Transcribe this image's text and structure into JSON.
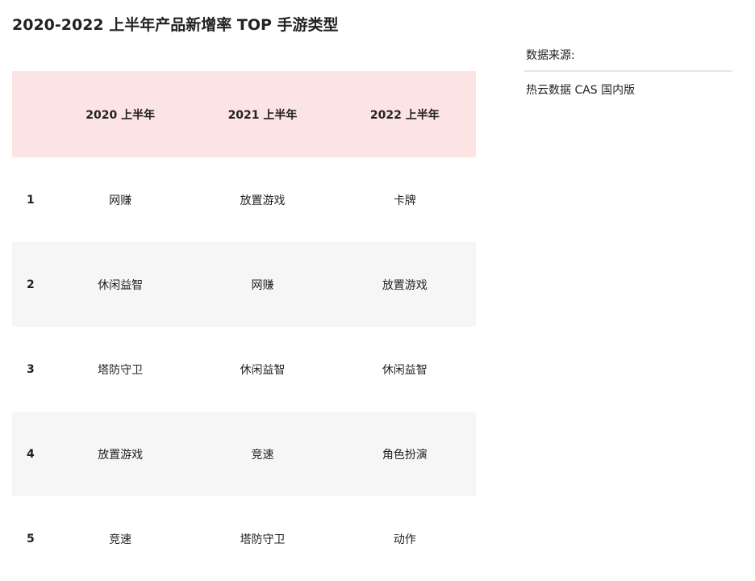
{
  "title": "2020-2022 上半年产品新增率 TOP 手游类型",
  "table": {
    "headers": [
      "2020 上半年",
      "2021 上半年",
      "2022 上半年"
    ],
    "rows": [
      {
        "rank": 1,
        "cells": [
          "网赚",
          "放置游戏",
          "卡牌"
        ]
      },
      {
        "rank": 2,
        "cells": [
          "休闲益智",
          "网赚",
          "放置游戏"
        ]
      },
      {
        "rank": 3,
        "cells": [
          "塔防守卫",
          "休闲益智",
          "休闲益智"
        ]
      },
      {
        "rank": 4,
        "cells": [
          "放置游戏",
          "竞速",
          "角色扮演"
        ]
      },
      {
        "rank": 5,
        "cells": [
          "竞速",
          "塔防守卫",
          "动作"
        ]
      }
    ]
  },
  "source": {
    "label": "数据来源:",
    "value": "热云数据 CAS 国内版"
  }
}
